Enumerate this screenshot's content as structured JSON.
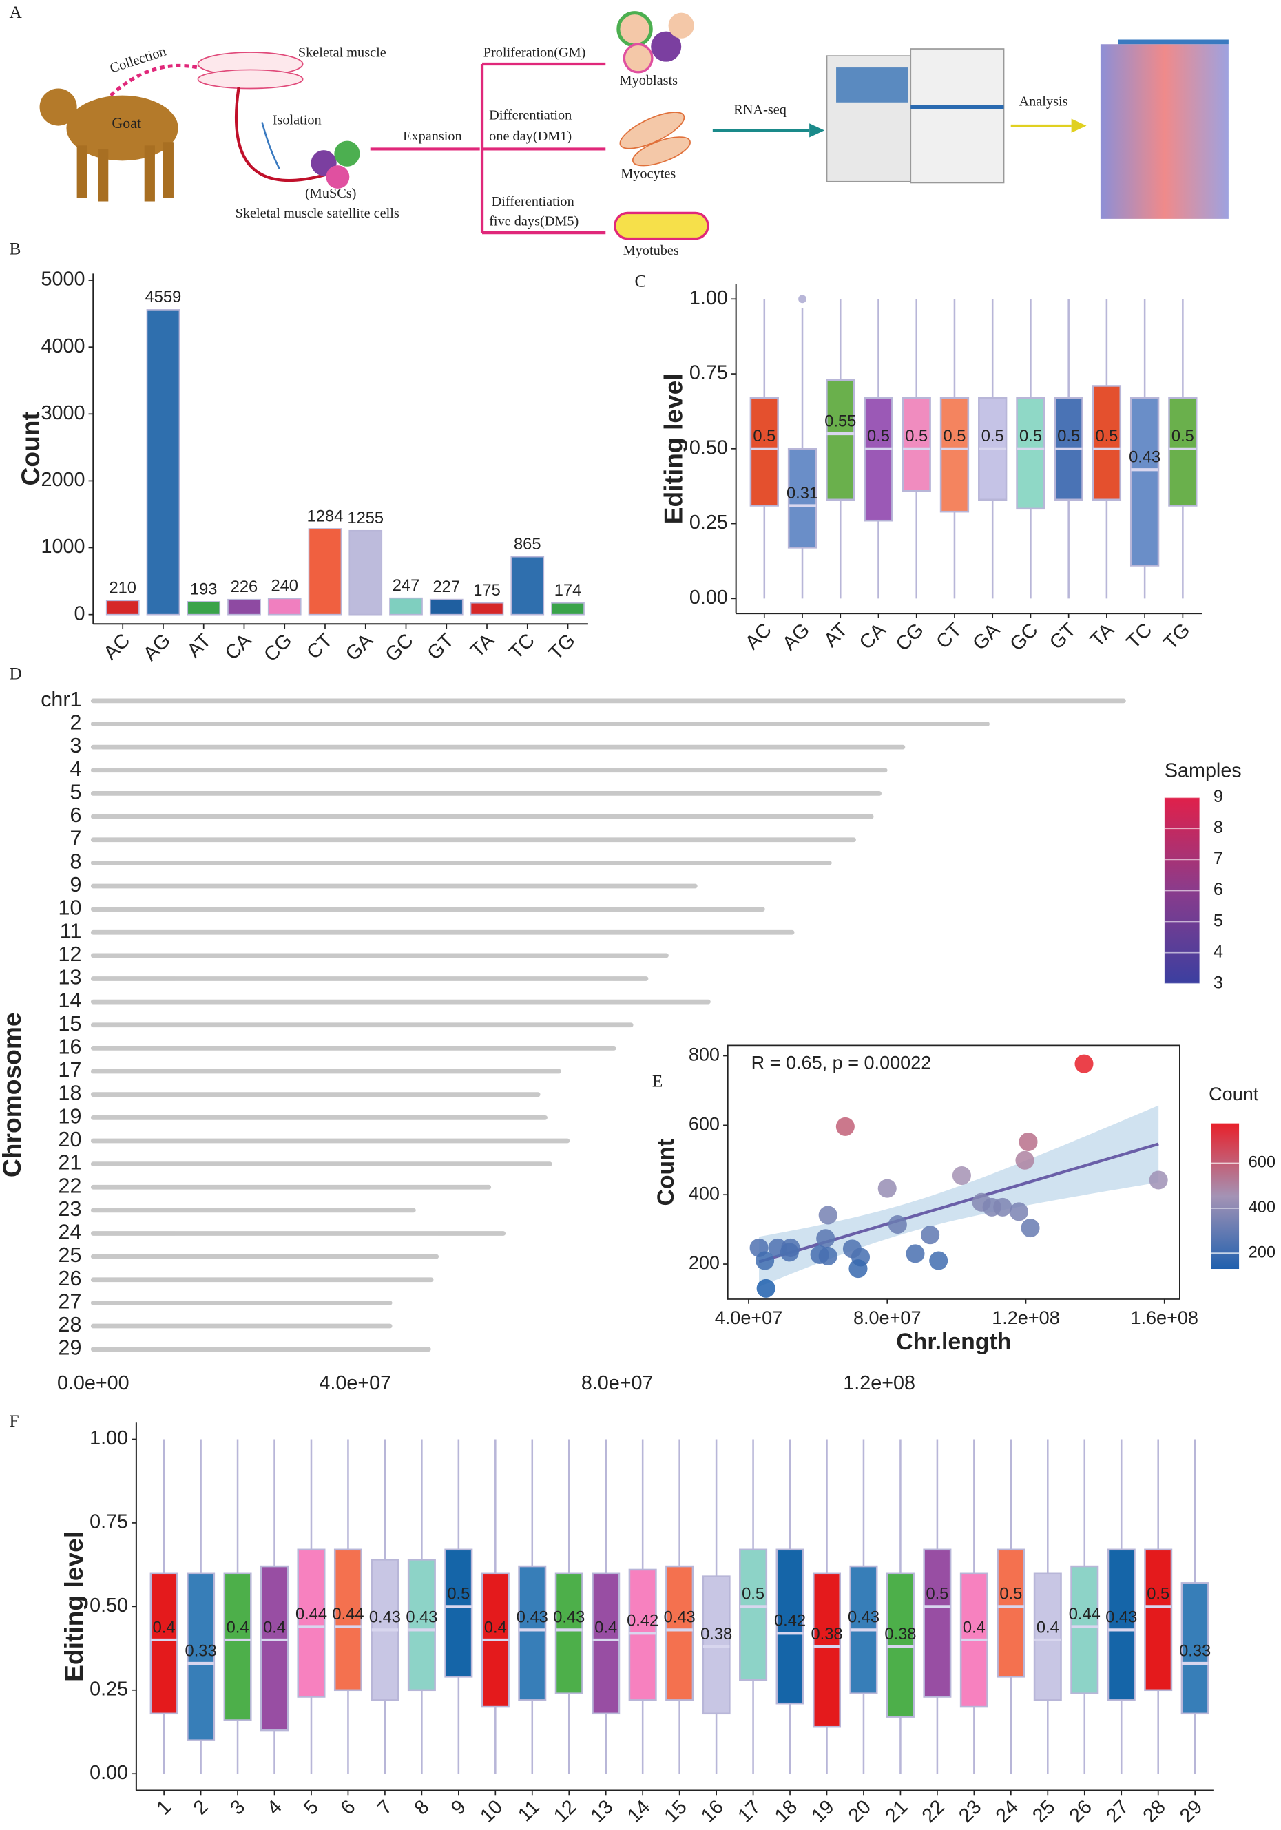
{
  "diagram": {
    "panel": "A",
    "collection": "Collection",
    "skeletal_muscle": "Skeletal muscle",
    "goat": "Goat",
    "isolation": "Isolation",
    "muscs": "(MuSCs)",
    "satellite_cells": "Skeletal muscle satellite cells",
    "expansion": "Expansion",
    "proliferation": "Proliferation(GM)",
    "dm1_line1": "Differentiation",
    "dm1_line2": "one day(DM1)",
    "dm5_line1": "Differentiation",
    "dm5_line2": "five days(DM5)",
    "myoblasts": "Myoblasts",
    "myocytes": "Myocytes",
    "myotubes": "Myotubes",
    "rnaseq": "RNA-seq",
    "analysis": "Analysis"
  },
  "chart_data": [
    {
      "type": "bar",
      "panel": "B",
      "ylabel": "Count",
      "categories": [
        "AC",
        "AG",
        "AT",
        "CA",
        "CG",
        "CT",
        "GA",
        "GC",
        "GT",
        "TA",
        "TC",
        "TG"
      ],
      "values": [
        210,
        4559,
        193,
        226,
        240,
        1284,
        1255,
        247,
        227,
        175,
        865,
        174
      ],
      "colors": [
        "#d62728",
        "#2f6fae",
        "#3aa34a",
        "#8e4aa2",
        "#f07fbf",
        "#f06040",
        "#bdbbdc",
        "#7fcfbf",
        "#1f5fa0",
        "#d62728",
        "#2f6fae",
        "#3aa34a"
      ],
      "ylim": [
        -140,
        5100
      ],
      "yticks": [
        0,
        1000,
        2000,
        3000,
        4000,
        5000
      ]
    },
    {
      "type": "box",
      "panel": "C",
      "ylabel": "Editing level",
      "categories": [
        "AC",
        "AG",
        "AT",
        "CA",
        "CG",
        "CT",
        "GA",
        "GC",
        "GT",
        "TA",
        "TC",
        "TG"
      ],
      "min": [
        0,
        0,
        0,
        0,
        0,
        0,
        0,
        0,
        0,
        0,
        0,
        0
      ],
      "q1": [
        0.31,
        0.17,
        0.33,
        0.26,
        0.36,
        0.29,
        0.33,
        0.3,
        0.33,
        0.33,
        0.11,
        0.31
      ],
      "median": [
        0.5,
        0.31,
        0.55,
        0.5,
        0.5,
        0.5,
        0.5,
        0.5,
        0.5,
        0.5,
        0.43,
        0.5
      ],
      "q3": [
        0.67,
        0.5,
        0.73,
        0.67,
        0.67,
        0.67,
        0.67,
        0.67,
        0.67,
        0.71,
        0.67,
        0.67
      ],
      "max": [
        1,
        0.97,
        1,
        1,
        1,
        1,
        1,
        1,
        1,
        1,
        1,
        1
      ],
      "outliers": [
        [],
        [
          1.0
        ],
        [],
        [],
        [],
        [],
        [],
        [],
        [],
        [],
        [],
        []
      ],
      "colors": [
        "#e4502e",
        "#6a8ec8",
        "#6ab04c",
        "#9b59b6",
        "#f08cbf",
        "#f4845f",
        "#c5c3e6",
        "#8fd8c6",
        "#4a73b5",
        "#e4502e",
        "#6a8ec8",
        "#6ab04c"
      ],
      "ylim": [
        -0.05,
        1.05
      ],
      "yticks": [
        {
          "value": 0,
          "label": "0.00"
        },
        {
          "value": 0.25,
          "label": "0.25"
        },
        {
          "value": 0.5,
          "label": "0.50"
        },
        {
          "value": 0.75,
          "label": "0.75"
        },
        {
          "value": 1,
          "label": "1.00"
        }
      ]
    },
    {
      "type": "strip",
      "panel": "D",
      "ylabel": "Chromosome",
      "categories": [
        "chr1",
        "2",
        "3",
        "4",
        "5",
        "6",
        "7",
        "8",
        "9",
        "10",
        "11",
        "12",
        "13",
        "14",
        "15",
        "16",
        "17",
        "18",
        "19",
        "20",
        "21",
        "22",
        "23",
        "24",
        "25",
        "26",
        "27",
        "28",
        "29"
      ],
      "values": [
        157300000,
        136500000,
        123600000,
        120900000,
        120000000,
        118800000,
        116100000,
        112400000,
        91900000,
        102200000,
        106700000,
        87500000,
        84400000,
        93900000,
        82100000,
        79500000,
        71100000,
        67900000,
        69000000,
        72400000,
        69700000,
        60400000,
        48900000,
        62600000,
        52400000,
        51600000,
        45300000,
        45300000,
        51200000
      ],
      "color": "#c8c8c8",
      "xlim": [
        0,
        160000000
      ],
      "xticks": [
        {
          "value": 0,
          "label": "0.0e+00"
        },
        {
          "value": 40000000,
          "label": "4.0e+07"
        },
        {
          "value": 80000000,
          "label": "8.0e+07"
        },
        {
          "value": 120000000,
          "label": "1.2e+08"
        }
      ],
      "legend_title": "Samples",
      "clim": [
        3,
        9
      ],
      "cticks": [
        3,
        4,
        5,
        6,
        7,
        8,
        9
      ],
      "colormap": [
        "#3b3fa0",
        "#8a3c8c",
        "#e0204a"
      ]
    },
    {
      "type": "scatter",
      "panel": "E",
      "xlabel": "Chr.length",
      "ylabel": "Count",
      "annotation": "R = 0.65, p = 0.00022",
      "x": [
        136800000,
        67900000,
        120700000,
        119700000,
        158300000,
        101500000,
        80000000,
        107200000,
        110200000,
        113300000,
        118000000,
        121300000,
        83000000,
        62900000,
        92400000,
        88100000,
        94800000,
        62200000,
        60500000,
        62900000,
        72300000,
        69900000,
        71600000,
        43000000,
        48400000,
        52100000,
        51800000,
        44700000,
        45000000
      ],
      "values": [
        777,
        596,
        552,
        499,
        442,
        455,
        418,
        378,
        364,
        364,
        351,
        304,
        314,
        341,
        284,
        230,
        210,
        274,
        227,
        223,
        220,
        244,
        187,
        247,
        247,
        247,
        234,
        210,
        130
      ],
      "xlim": [
        34000000,
        164400000
      ],
      "ylim": [
        99,
        830
      ],
      "xticks": [
        {
          "value": 40000000,
          "label": "4.0e+07"
        },
        {
          "value": 80000000,
          "label": "8.0e+07"
        },
        {
          "value": 120000000,
          "label": "1.2e+08"
        },
        {
          "value": 160000000,
          "label": "1.6e+08"
        }
      ],
      "yticks": [
        200,
        400,
        600,
        800
      ],
      "legend_title": "Count",
      "cticks": [
        200,
        400,
        600
      ],
      "colormap": [
        "#2060ae",
        "#a493b5",
        "#e8202a"
      ],
      "line_color": "#6a5fa8",
      "band_color": "#bcd6ea"
    },
    {
      "type": "box",
      "panel": "F",
      "ylabel": "Editing level",
      "categories": [
        "1",
        "2",
        "3",
        "4",
        "5",
        "6",
        "7",
        "8",
        "9",
        "10",
        "11",
        "12",
        "13",
        "14",
        "15",
        "16",
        "17",
        "18",
        "19",
        "20",
        "21",
        "22",
        "23",
        "24",
        "25",
        "26",
        "27",
        "28",
        "29"
      ],
      "min": [
        0,
        0,
        0,
        0,
        0,
        0,
        0,
        0,
        0,
        0,
        0,
        0,
        0,
        0,
        0,
        0,
        0,
        0,
        0,
        0,
        0,
        0,
        0,
        0,
        0,
        0,
        0,
        0,
        0
      ],
      "q1": [
        0.18,
        0.1,
        0.16,
        0.13,
        0.23,
        0.25,
        0.22,
        0.25,
        0.29,
        0.2,
        0.22,
        0.24,
        0.18,
        0.22,
        0.22,
        0.18,
        0.28,
        0.21,
        0.14,
        0.24,
        0.17,
        0.23,
        0.2,
        0.29,
        0.22,
        0.24,
        0.22,
        0.25,
        0.18
      ],
      "median": [
        0.4,
        0.33,
        0.4,
        0.4,
        0.44,
        0.44,
        0.43,
        0.43,
        0.5,
        0.4,
        0.43,
        0.43,
        0.4,
        0.42,
        0.43,
        0.38,
        0.5,
        0.42,
        0.38,
        0.43,
        0.38,
        0.5,
        0.4,
        0.5,
        0.4,
        0.44,
        0.43,
        0.5,
        0.33
      ],
      "q3": [
        0.6,
        0.6,
        0.6,
        0.62,
        0.67,
        0.67,
        0.64,
        0.64,
        0.67,
        0.6,
        0.62,
        0.6,
        0.6,
        0.61,
        0.62,
        0.59,
        0.67,
        0.67,
        0.6,
        0.62,
        0.6,
        0.67,
        0.6,
        0.67,
        0.6,
        0.62,
        0.67,
        0.67,
        0.57
      ],
      "max": [
        1,
        1,
        1,
        1,
        1,
        1,
        1,
        1,
        1,
        1,
        1,
        1,
        1,
        1,
        1,
        1,
        1,
        1,
        1,
        1,
        1,
        1,
        1,
        1,
        1,
        1,
        1,
        1,
        1
      ],
      "colors": [
        "#e41a1c",
        "#377eb8",
        "#4daf4a",
        "#984ea3",
        "#f781bf",
        "#f4714f",
        "#c8c6e4",
        "#8dd3c7",
        "#1565a8",
        "#e41a1c",
        "#377eb8",
        "#4daf4a",
        "#984ea3",
        "#f781bf",
        "#f4714f",
        "#c8c6e4",
        "#8dd3c7",
        "#1565a8",
        "#e41a1c",
        "#377eb8",
        "#4daf4a",
        "#984ea3",
        "#f781bf",
        "#f4714f",
        "#c8c6e4",
        "#8dd3c7",
        "#1565a8",
        "#e41a1c",
        "#377eb8"
      ],
      "ylim": [
        -0.05,
        1.05
      ],
      "yticks": [
        {
          "value": 0,
          "label": "0.00"
        },
        {
          "value": 0.25,
          "label": "0.25"
        },
        {
          "value": 0.5,
          "label": "0.50"
        },
        {
          "value": 0.75,
          "label": "0.75"
        },
        {
          "value": 1,
          "label": "1.00"
        }
      ]
    }
  ]
}
